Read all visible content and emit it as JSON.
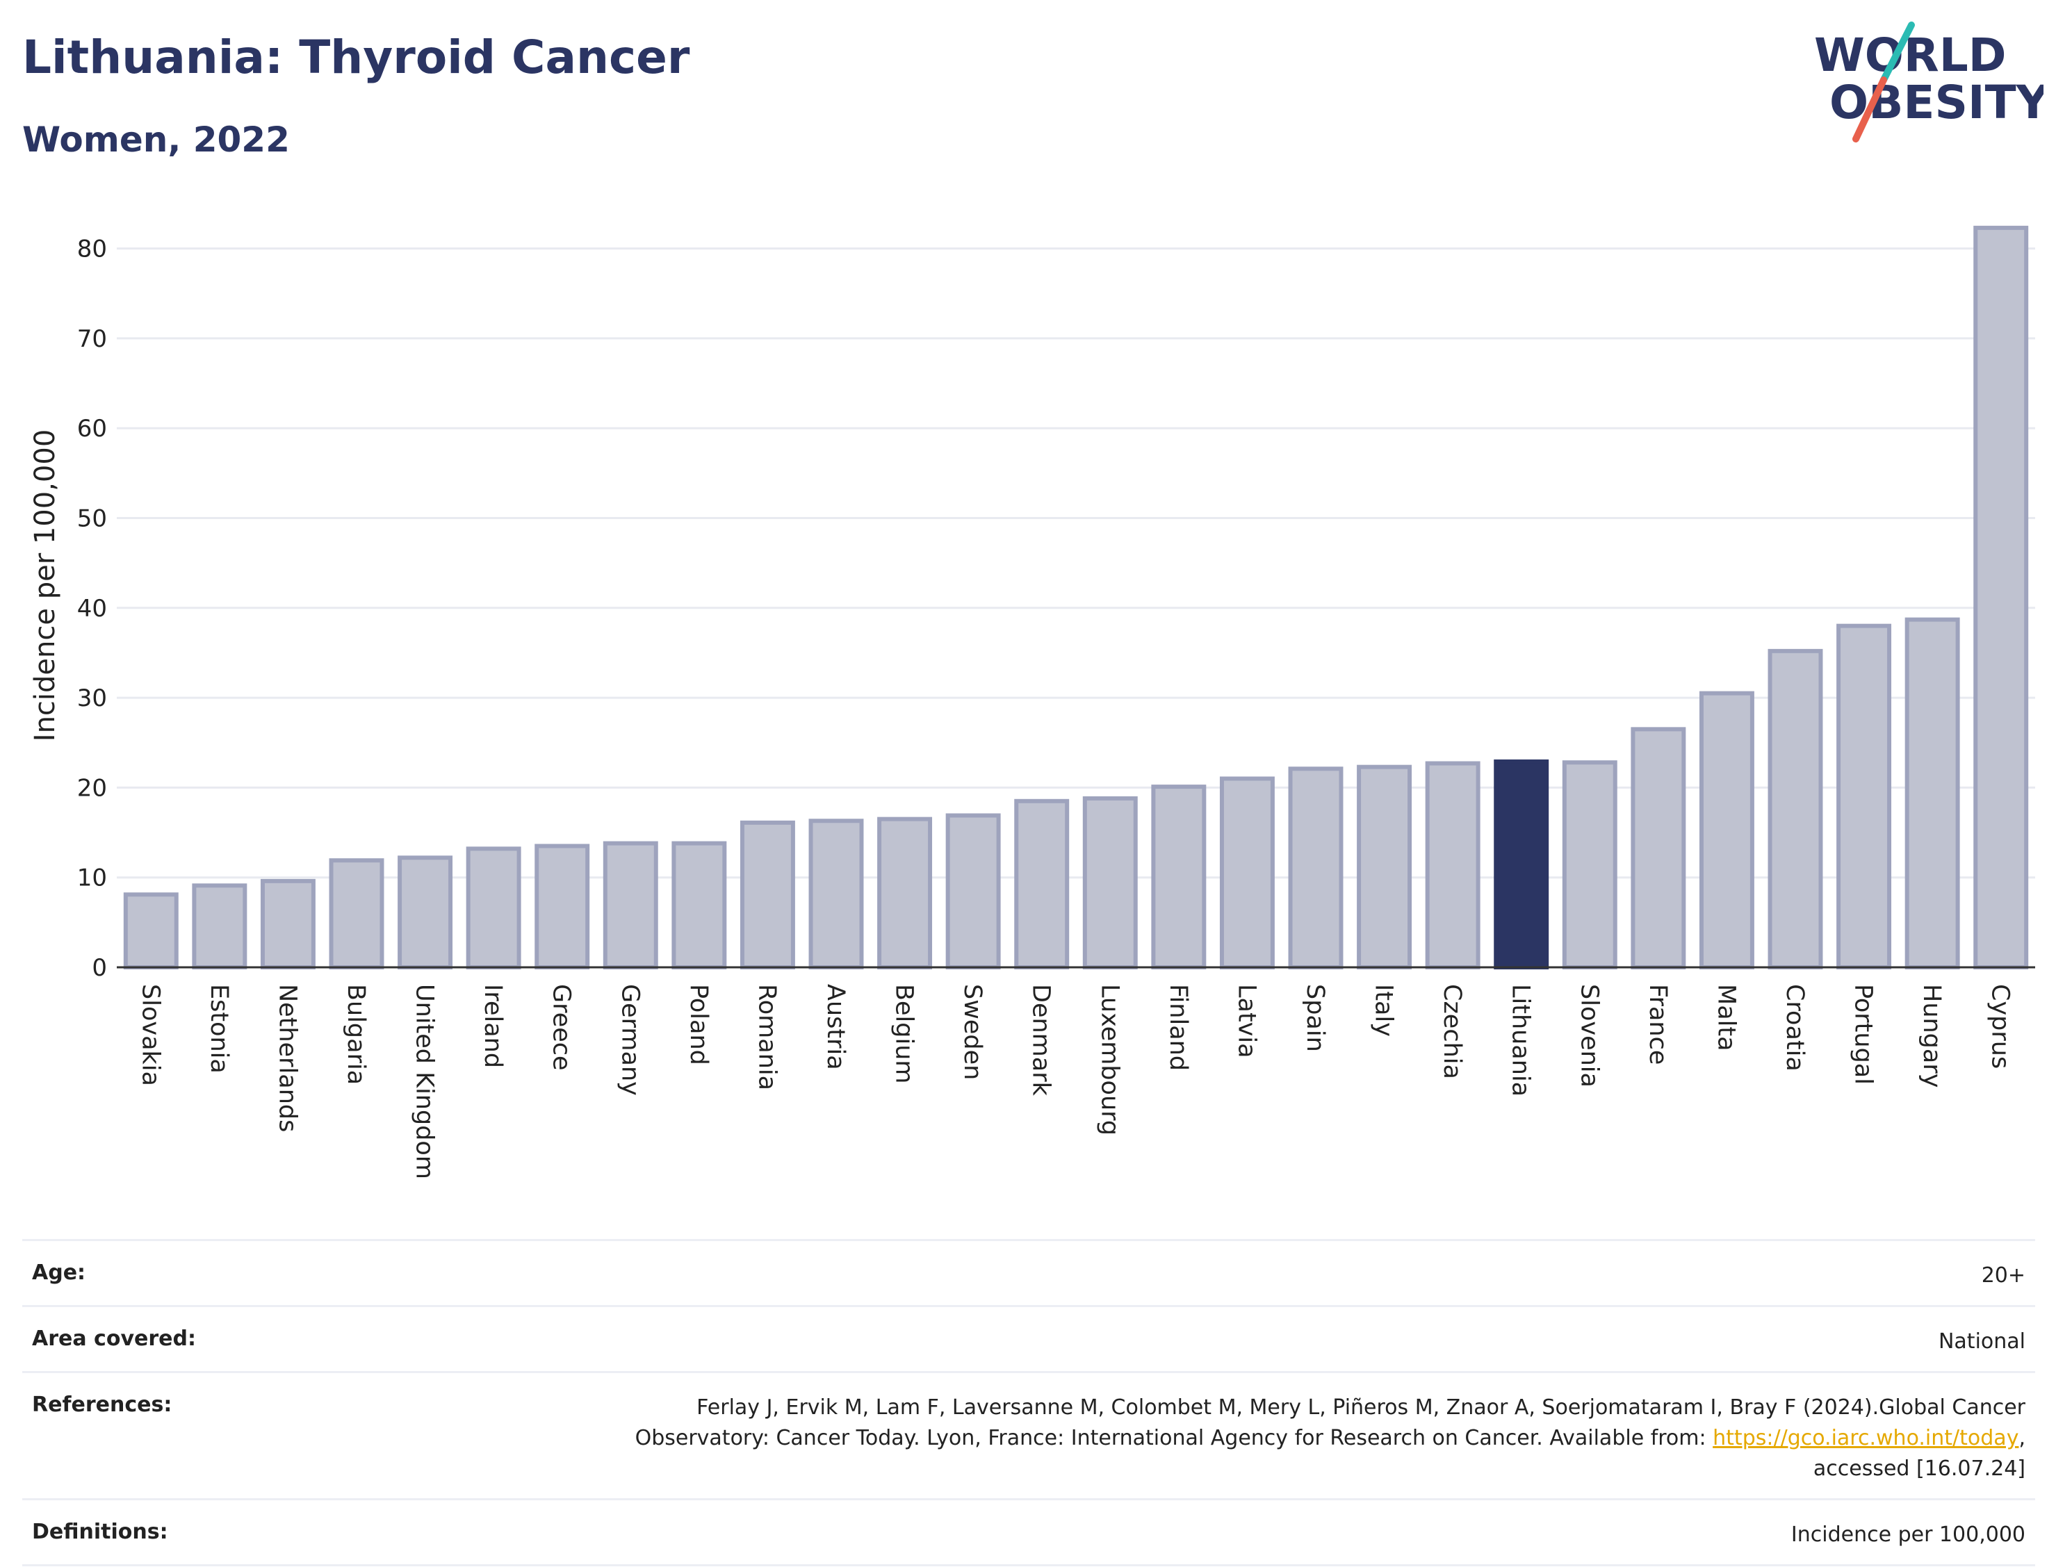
{
  "header": {
    "title": "Lithuania: Thyroid Cancer",
    "subtitle": "Women, 2022"
  },
  "logo": {
    "line1": "WORLD",
    "line2": "OBESITY",
    "colors": {
      "text": "#2b3563",
      "slash_top": "#2bbbb3",
      "slash_bottom": "#e8604c"
    }
  },
  "colors": {
    "bar_fill": "#bfc2d0",
    "bar_stroke": "#9ea3bd",
    "highlight": "#2b3563",
    "grid": "#e8eaf0"
  },
  "chart_data": {
    "type": "bar",
    "title": "Lithuania: Thyroid Cancer",
    "subtitle": "Women, 2022",
    "xlabel": "",
    "ylabel": "Incidence per 100,000",
    "ylim": [
      0,
      85
    ],
    "yticks": [
      0,
      10,
      20,
      30,
      40,
      50,
      60,
      70,
      80
    ],
    "grid": true,
    "highlight": "Lithuania",
    "categories": [
      "Slovakia",
      "Estonia",
      "Netherlands",
      "Bulgaria",
      "United Kingdom",
      "Ireland",
      "Greece",
      "Germany",
      "Poland",
      "Romania",
      "Austria",
      "Belgium",
      "Sweden",
      "Denmark",
      "Luxembourg",
      "Finland",
      "Latvia",
      "Spain",
      "Italy",
      "Czechia",
      "Lithuania",
      "Slovenia",
      "France",
      "Malta",
      "Croatia",
      "Portugal",
      "Hungary",
      "Cyprus"
    ],
    "values": [
      8.1,
      9.1,
      9.6,
      11.9,
      12.2,
      13.2,
      13.5,
      13.8,
      13.8,
      16.1,
      16.3,
      16.5,
      16.9,
      18.5,
      18.8,
      20.1,
      21.0,
      22.1,
      22.3,
      22.7,
      22.9,
      22.8,
      26.5,
      30.5,
      35.2,
      38.0,
      38.7,
      82.3
    ]
  },
  "info": {
    "age_label": "Age:",
    "age_value": "20+",
    "area_label": "Area covered:",
    "area_value": "National",
    "references_label": "References:",
    "references_text_1": "Ferlay J, Ervik M, Lam F, Laversanne M, Colombet M, Mery L, Piñeros M, Znaor A, Soerjomataram I, Bray F (2024).Global Cancer",
    "references_text_2": "Observatory: Cancer Today. Lyon, France: International Agency for Research on Cancer. Available from: ",
    "references_link": "https://gco.iarc.who.int/today",
    "references_text_3": ",",
    "references_text_4": "accessed [16.07.24]",
    "definitions_label": "Definitions:",
    "definitions_value": "Incidence per 100,000"
  }
}
